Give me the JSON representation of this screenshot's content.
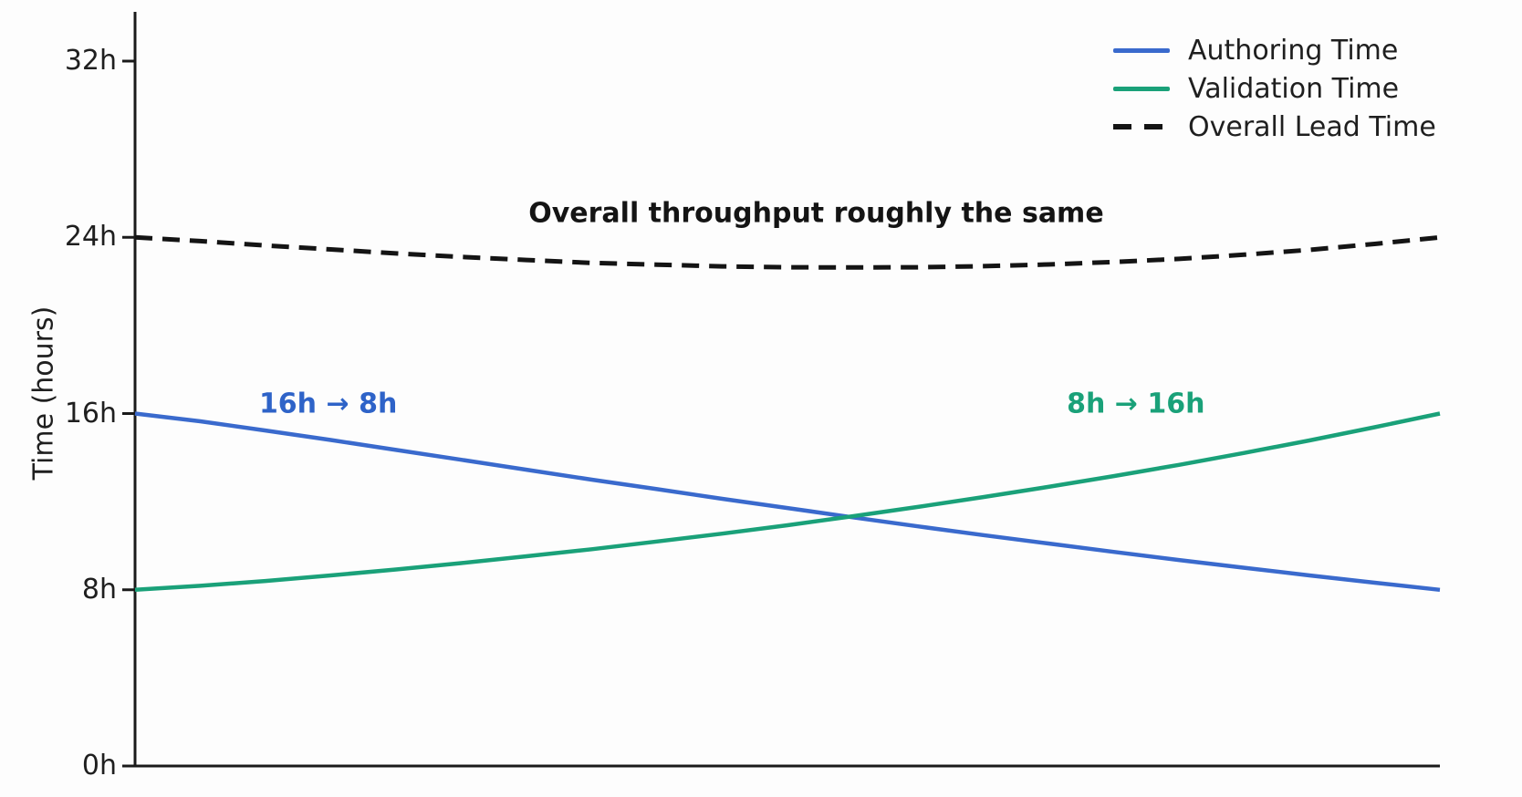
{
  "chart_data": {
    "type": "line",
    "title": "",
    "xlabel": "",
    "ylabel": "Time (hours)",
    "ylim": [
      0,
      32
    ],
    "xlim": [
      0,
      1
    ],
    "grid": false,
    "legend_position": "upper right",
    "legend_frame": false,
    "axis_color": "#1a1a1a",
    "yticks": [
      {
        "value": 0,
        "label": "0h"
      },
      {
        "value": 8,
        "label": "8h"
      },
      {
        "value": 16,
        "label": "16h"
      },
      {
        "value": 24,
        "label": "24h"
      },
      {
        "value": 32,
        "label": "32h"
      }
    ],
    "x": [
      0,
      0.05,
      0.1,
      0.15,
      0.2,
      0.25,
      0.3,
      0.35,
      0.4,
      0.45,
      0.5,
      0.55,
      0.6,
      0.65,
      0.7,
      0.75,
      0.8,
      0.85,
      0.9,
      0.95,
      1
    ],
    "series": [
      {
        "name": "Authoring Time",
        "color": "#3a6acd",
        "style": "solid",
        "start_value_hours": 16,
        "end_value_hours": 8,
        "values": [
          16,
          15.65,
          15.23,
          14.8,
          14.35,
          13.9,
          13.45,
          13.0,
          12.57,
          12.13,
          11.71,
          11.29,
          10.88,
          10.48,
          10.1,
          9.72,
          9.35,
          9.0,
          8.65,
          8.32,
          8
        ]
      },
      {
        "name": "Validation Time",
        "color": "#1aa179",
        "style": "solid",
        "start_value_hours": 8,
        "end_value_hours": 16,
        "values": [
          8,
          8.18,
          8.4,
          8.65,
          8.92,
          9.21,
          9.52,
          9.84,
          10.19,
          10.55,
          10.93,
          11.34,
          11.76,
          12.21,
          12.67,
          13.16,
          13.67,
          14.21,
          14.78,
          15.38,
          16
        ]
      },
      {
        "name": "Overall Lead Time",
        "color": "#141414",
        "style": "dashed",
        "start_value_hours": 24,
        "end_value_hours": 24,
        "values": [
          24,
          23.83,
          23.63,
          23.45,
          23.27,
          23.11,
          22.97,
          22.84,
          22.76,
          22.68,
          22.64,
          22.63,
          22.64,
          22.69,
          22.77,
          22.88,
          23.02,
          23.21,
          23.43,
          23.7,
          24
        ]
      }
    ],
    "annotations": [
      {
        "text": "Overall throughput roughly the same",
        "color": "#141414",
        "x": 0.522,
        "y_hours": 25.1
      },
      {
        "text": "16h → 8h",
        "color": "#2e63c8",
        "x": 0.148,
        "y_hours": 16.45
      },
      {
        "text": "8h → 16h",
        "color": "#1aa179",
        "x": 0.767,
        "y_hours": 16.45
      }
    ]
  }
}
